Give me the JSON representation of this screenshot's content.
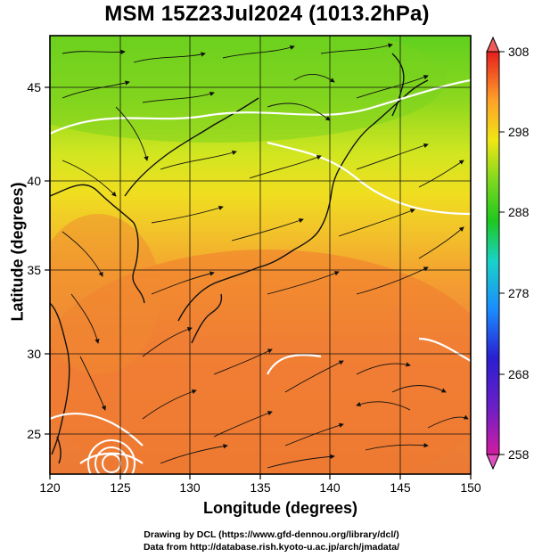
{
  "title": "MSM 15Z23Jul2024 (1013.2hPa)",
  "map": {
    "xlabel": "Longitude (degrees)",
    "ylabel": "Latitude  (degrees)",
    "lon_range": [
      120,
      150
    ],
    "lat_range": [
      22.5,
      47.6
    ],
    "lon_ticks": [
      "120",
      "125",
      "130",
      "135",
      "140",
      "145",
      "150"
    ],
    "lat_ticks": [
      "25",
      "30",
      "35",
      "40",
      "45"
    ],
    "grid": true
  },
  "colorbar": {
    "ticks": [
      "308",
      "298",
      "288",
      "278",
      "268",
      "258"
    ],
    "min": 258,
    "max": 308,
    "colors": [
      "#d21ca0",
      "#2a1fd0",
      "#1a8cff",
      "#19d2c8",
      "#1ec81e",
      "#a6e61e",
      "#f0e614",
      "#ffa028",
      "#f05a1e",
      "#e61e1e"
    ]
  },
  "credits": {
    "line1": "Drawing by DCL (https://www.gfd-dennou.org/library/dcl/)",
    "line2": "Data from http://database.rish.kyoto-u.ac.jp/arch/jmadata/"
  }
}
